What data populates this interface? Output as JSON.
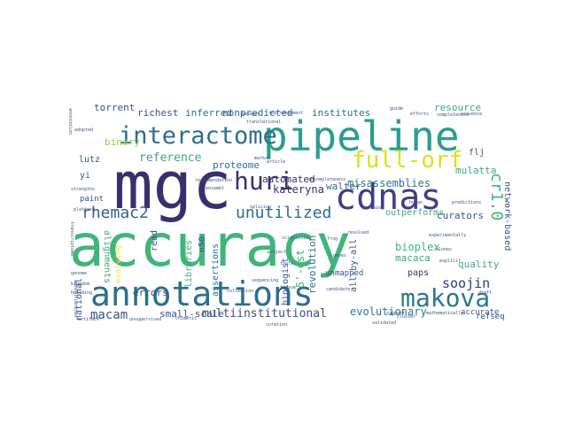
{
  "colors": {
    "background": "#ffffff",
    "palette": [
      "#3b2f6b",
      "#2c6e8e",
      "#3fa77a",
      "#8fd14f",
      "#f0e442",
      "#2a8b8c",
      "#443983",
      "#5ac864"
    ]
  },
  "words": [
    {
      "text": "accuracy",
      "color": "#3fb57a"
    },
    {
      "text": "mgc",
      "color": "#3b2f6b"
    },
    {
      "text": "pipeline",
      "color": "#2a9d8f"
    },
    {
      "text": "annotations",
      "color": "#2c6e8e"
    },
    {
      "text": "cdnas",
      "color": "#433d84"
    },
    {
      "text": "interactome",
      "color": "#2c6e8e"
    },
    {
      "text": "full-orf",
      "color": "#d8e219"
    },
    {
      "text": "makova",
      "color": "#2a788e"
    },
    {
      "text": "huri",
      "color": "#3b2f6b"
    },
    {
      "text": "unutilized",
      "color": "#2c6e8e"
    },
    {
      "text": "rhemac2",
      "color": "#35608d"
    },
    {
      "text": "cr1.0",
      "color": "#3fb57a"
    },
    {
      "text": "multiinstitutional",
      "color": "#3b4d8a"
    },
    {
      "text": "macam",
      "color": "#3b528b"
    },
    {
      "text": "soojin",
      "color": "#2c3e6e"
    },
    {
      "text": "evolutionary",
      "color": "#2a788e"
    },
    {
      "text": "kateryna",
      "color": "#3b2f6b"
    },
    {
      "text": "reference",
      "color": "#3fa77a"
    },
    {
      "text": "misassemblies",
      "color": "#2a788e"
    },
    {
      "text": "curators",
      "color": "#3b528b"
    },
    {
      "text": "network-based",
      "color": "#3b528b"
    },
    {
      "text": "bioplex",
      "color": "#3fb57a"
    },
    {
      "text": "macaca",
      "color": "#3fa77a"
    },
    {
      "text": "quality",
      "color": "#3fa77a"
    },
    {
      "text": "revolution",
      "color": "#2c6e8e"
    },
    {
      "text": "small-scale",
      "color": "#3b528b"
    },
    {
      "text": "libraries",
      "color": "#3fa77a"
    },
    {
      "text": "errors",
      "color": "#3b528b"
    },
    {
      "text": "alignments",
      "color": "#3fa77a"
    },
    {
      "text": "automated",
      "color": "#3b2f6b"
    },
    {
      "text": "proteome",
      "color": "#2c6e8e"
    },
    {
      "text": "institutes",
      "color": "#2c6e8e"
    },
    {
      "text": "inferred",
      "color": "#2c6e8e"
    },
    {
      "text": "nonpredicted",
      "color": "#2c6e8e"
    },
    {
      "text": "richest",
      "color": "#3b528b"
    },
    {
      "text": "torrent",
      "color": "#3b528b"
    },
    {
      "text": "binary",
      "color": "#8fd14f"
    },
    {
      "text": "resource",
      "color": "#3fa77a"
    },
    {
      "text": "mulatta",
      "color": "#3fa77a"
    },
    {
      "text": "flj",
      "color": "#3b528b"
    },
    {
      "text": "walter",
      "color": "#2c6e8e"
    },
    {
      "text": "outperforms",
      "color": "#3fa77a"
    },
    {
      "text": "unmapped",
      "color": "#3b528b"
    },
    {
      "text": "biologist",
      "color": "#3b528b"
    },
    {
      "text": "5'-est",
      "color": "#3fb57a"
    },
    {
      "text": "all-by-all",
      "color": "#3b528b"
    },
    {
      "text": "paps",
      "color": "#3b2f6b"
    },
    {
      "text": "lutz",
      "color": "#3b528b"
    },
    {
      "text": "yi",
      "color": "#3b528b"
    },
    {
      "text": "paint",
      "color": "#3b528b"
    },
    {
      "text": "national",
      "color": "#3b528b"
    },
    {
      "text": "read",
      "color": "#3b528b"
    },
    {
      "text": "n50",
      "color": "#3b528b"
    },
    {
      "text": "assertions",
      "color": "#2c6e8e"
    },
    {
      "text": "accurate",
      "color": "#3b528b"
    },
    {
      "text": "refseq",
      "color": "#3b528b"
    },
    {
      "text": "evolving",
      "color": "#f0e442"
    },
    {
      "text": "markov",
      "color": "#3b528b"
    },
    {
      "text": "candidate",
      "color": "#3b528b"
    },
    {
      "text": "frog",
      "color": "#3b528b"
    },
    {
      "text": "project",
      "color": "#3b528b"
    },
    {
      "text": "tissue",
      "color": "#3b528b"
    },
    {
      "text": "collection",
      "color": "#3b528b"
    },
    {
      "text": "experimentally",
      "color": "#3b528b"
    },
    {
      "text": "mathematically",
      "color": "#3b528b"
    },
    {
      "text": "draft",
      "color": "#3b528b"
    },
    {
      "text": "explicit",
      "color": "#3b528b"
    },
    {
      "text": "completeness",
      "color": "#3b528b"
    },
    {
      "text": "rearrangement",
      "color": "#3b528b"
    },
    {
      "text": "tools",
      "color": "#3b528b"
    },
    {
      "text": "article",
      "color": "#3b528b"
    },
    {
      "text": "clones",
      "color": "#3b528b"
    },
    {
      "text": "incompleteness",
      "color": "#3b528b"
    },
    {
      "text": "sequence",
      "color": "#3b528b"
    },
    {
      "text": "support",
      "color": "#3b528b"
    },
    {
      "text": "strengths",
      "color": "#3b528b"
    },
    {
      "text": "revolutionized",
      "color": "#3b528b"
    },
    {
      "text": "building",
      "color": "#3b528b"
    },
    {
      "text": "annotation",
      "color": "#3b528b"
    },
    {
      "text": "platform",
      "color": "#3b528b"
    },
    {
      "text": "cluster",
      "color": "#3b528b"
    },
    {
      "text": "kingdom",
      "color": "#3b528b"
    },
    {
      "text": "transcriptome",
      "color": "#3b528b"
    },
    {
      "text": "manager",
      "color": "#3b528b"
    },
    {
      "text": "guide",
      "color": "#3b528b"
    },
    {
      "text": "ensembl",
      "color": "#3b528b"
    },
    {
      "text": "efforts",
      "color": "#3b528b"
    },
    {
      "text": "genome",
      "color": "#3b528b"
    },
    {
      "text": "chimeric",
      "color": "#3b528b"
    },
    {
      "text": "adopted",
      "color": "#3b528b"
    },
    {
      "text": "sequencing",
      "color": "#3b528b"
    },
    {
      "text": "unsupervised",
      "color": "#3b528b"
    },
    {
      "text": "artifact",
      "color": "#3b528b"
    },
    {
      "text": "translational",
      "color": "#3b528b"
    },
    {
      "text": "recommendation",
      "color": "#3b528b"
    },
    {
      "text": "cloning",
      "color": "#3b528b"
    },
    {
      "text": "scientists",
      "color": "#3b528b"
    },
    {
      "text": "validated",
      "color": "#3b528b"
    },
    {
      "text": "predictions",
      "color": "#3b528b"
    },
    {
      "text": "curation",
      "color": "#3b528b"
    },
    {
      "text": "resolved",
      "color": "#3b528b"
    },
    {
      "text": "genes",
      "color": "#3b528b"
    },
    {
      "text": "human",
      "color": "#3b528b"
    },
    {
      "text": "splicing",
      "color": "#3b528b"
    }
  ]
}
